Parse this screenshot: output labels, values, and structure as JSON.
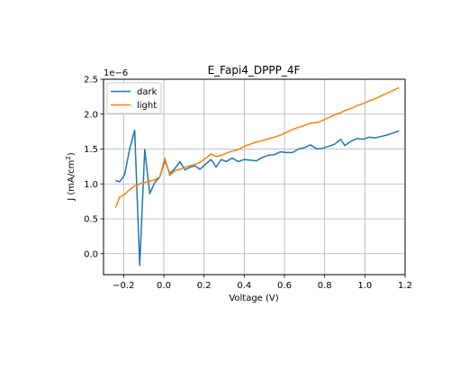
{
  "chart_data": {
    "type": "line",
    "title": "E_Fapi4_DPPP_4F",
    "xlabel": "Voltage (V)",
    "ylabel_main": "J (mA/cm",
    "ylabel_sup": "2",
    "ylabel_close": ")",
    "y_offset_label": "1e−6",
    "xlim": [
      -0.3,
      1.2
    ],
    "ylim": [
      -0.3,
      2.5
    ],
    "grid": true,
    "legend_position": "top-left",
    "x_ticks": [
      {
        "value": -0.2,
        "label": "−0.2"
      },
      {
        "value": 0.0,
        "label": "0.0"
      },
      {
        "value": 0.2,
        "label": "0.2"
      },
      {
        "value": 0.4,
        "label": "0.4"
      },
      {
        "value": 0.6,
        "label": "0.6"
      },
      {
        "value": 0.8,
        "label": "0.8"
      },
      {
        "value": 1.0,
        "label": "1.0"
      },
      {
        "value": 1.2,
        "label": "1.2"
      }
    ],
    "y_ticks": [
      {
        "value": 0.0,
        "label": "0.0"
      },
      {
        "value": 0.5,
        "label": "0.5"
      },
      {
        "value": 1.0,
        "label": "1.0"
      },
      {
        "value": 1.5,
        "label": "1.5"
      },
      {
        "value": 2.0,
        "label": "2.0"
      },
      {
        "value": 2.5,
        "label": "2.5"
      }
    ],
    "series": [
      {
        "name": "dark",
        "color": "#1f77b4",
        "x": [
          -0.24,
          -0.22,
          -0.195,
          -0.17,
          -0.145,
          -0.12,
          -0.095,
          -0.07,
          -0.045,
          -0.02,
          0.005,
          0.03,
          0.055,
          0.08,
          0.105,
          0.13,
          0.155,
          0.18,
          0.21,
          0.235,
          0.26,
          0.285,
          0.31,
          0.34,
          0.37,
          0.4,
          0.43,
          0.46,
          0.49,
          0.52,
          0.55,
          0.58,
          0.61,
          0.64,
          0.67,
          0.7,
          0.73,
          0.76,
          0.79,
          0.82,
          0.85,
          0.88,
          0.9,
          0.93,
          0.96,
          0.99,
          1.02,
          1.05,
          1.08,
          1.11,
          1.14,
          1.17
        ],
        "values": [
          1.05,
          1.03,
          1.13,
          1.5,
          1.77,
          -0.17,
          1.49,
          0.86,
          1.02,
          1.1,
          1.33,
          1.15,
          1.22,
          1.32,
          1.2,
          1.24,
          1.26,
          1.21,
          1.29,
          1.35,
          1.24,
          1.35,
          1.32,
          1.37,
          1.32,
          1.35,
          1.34,
          1.33,
          1.38,
          1.41,
          1.42,
          1.46,
          1.45,
          1.45,
          1.5,
          1.52,
          1.56,
          1.5,
          1.51,
          1.54,
          1.57,
          1.64,
          1.55,
          1.61,
          1.65,
          1.64,
          1.67,
          1.66,
          1.68,
          1.7,
          1.73,
          1.76
        ]
      },
      {
        "name": "light",
        "color": "#ff7f0e",
        "x": [
          -0.24,
          -0.22,
          -0.195,
          -0.17,
          -0.145,
          -0.12,
          -0.095,
          -0.07,
          -0.045,
          -0.02,
          0.005,
          0.03,
          0.055,
          0.08,
          0.105,
          0.13,
          0.155,
          0.18,
          0.21,
          0.235,
          0.26,
          0.285,
          0.31,
          0.34,
          0.37,
          0.4,
          0.43,
          0.46,
          0.49,
          0.52,
          0.55,
          0.58,
          0.61,
          0.64,
          0.67,
          0.7,
          0.73,
          0.76,
          0.79,
          0.82,
          0.85,
          0.88,
          0.9,
          0.93,
          0.96,
          0.99,
          1.02,
          1.05,
          1.08,
          1.11,
          1.14,
          1.17
        ],
        "values": [
          0.66,
          0.81,
          0.85,
          0.92,
          0.97,
          1.0,
          1.02,
          1.04,
          1.06,
          1.1,
          1.37,
          1.12,
          1.19,
          1.21,
          1.24,
          1.26,
          1.28,
          1.31,
          1.37,
          1.43,
          1.39,
          1.41,
          1.44,
          1.47,
          1.49,
          1.54,
          1.57,
          1.6,
          1.62,
          1.65,
          1.67,
          1.7,
          1.74,
          1.78,
          1.81,
          1.84,
          1.87,
          1.88,
          1.91,
          1.95,
          1.99,
          2.02,
          2.05,
          2.08,
          2.12,
          2.15,
          2.19,
          2.22,
          2.26,
          2.3,
          2.34,
          2.38
        ]
      }
    ]
  }
}
